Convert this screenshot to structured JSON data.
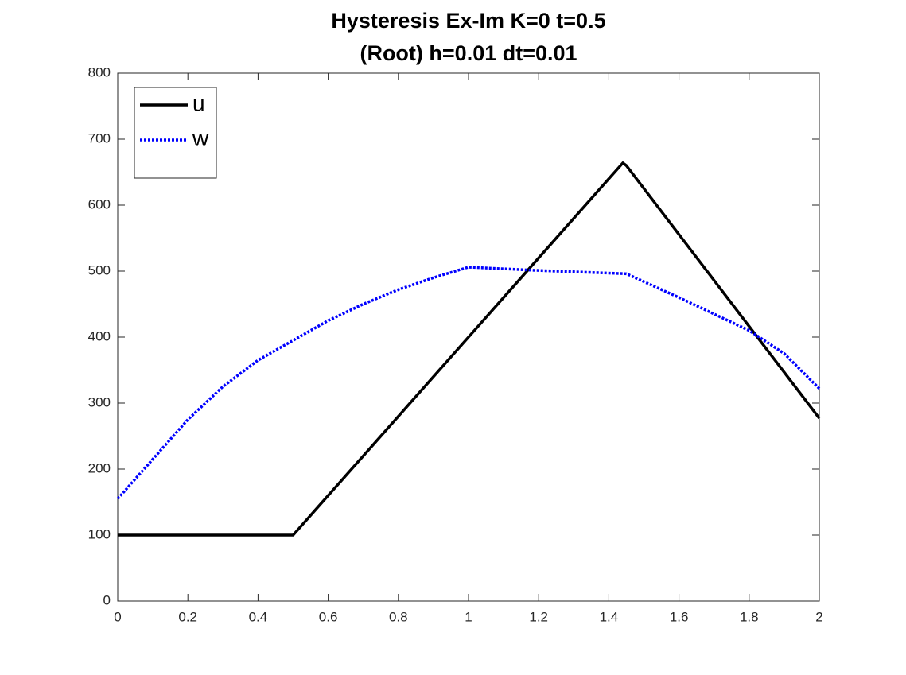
{
  "chart_data": {
    "type": "line",
    "title": [
      "Hysteresis Ex-Im K=0 t=0.5",
      "(Root) h=0.01 dt=0.01"
    ],
    "xlim": [
      0,
      2
    ],
    "xticks": [
      0,
      0.2,
      0.4,
      0.6,
      0.8,
      1,
      1.2,
      1.4,
      1.6,
      1.8,
      2
    ],
    "ylim": [
      0,
      800
    ],
    "yticks": [
      0,
      100,
      200,
      300,
      400,
      500,
      600,
      700,
      800
    ],
    "grid": false,
    "legend": "upper-left",
    "series": [
      {
        "name": "u",
        "color": "#000000",
        "style": "solid",
        "x": [
          0,
          0.5,
          1,
          1.44,
          1.45,
          2
        ],
        "values": [
          100,
          100,
          400,
          664,
          660,
          277
        ]
      },
      {
        "name": "w",
        "color": "#0000ff",
        "style": "dotted",
        "x": [
          0,
          0.1,
          0.2,
          0.3,
          0.4,
          0.5,
          0.6,
          0.7,
          0.8,
          0.9,
          1,
          1.2,
          1.45,
          1.6,
          1.8,
          1.9,
          2
        ],
        "values": [
          155,
          215,
          275,
          325,
          365,
          395,
          425,
          450,
          472,
          490,
          506,
          501,
          496,
          460,
          410,
          375,
          322
        ]
      }
    ]
  }
}
